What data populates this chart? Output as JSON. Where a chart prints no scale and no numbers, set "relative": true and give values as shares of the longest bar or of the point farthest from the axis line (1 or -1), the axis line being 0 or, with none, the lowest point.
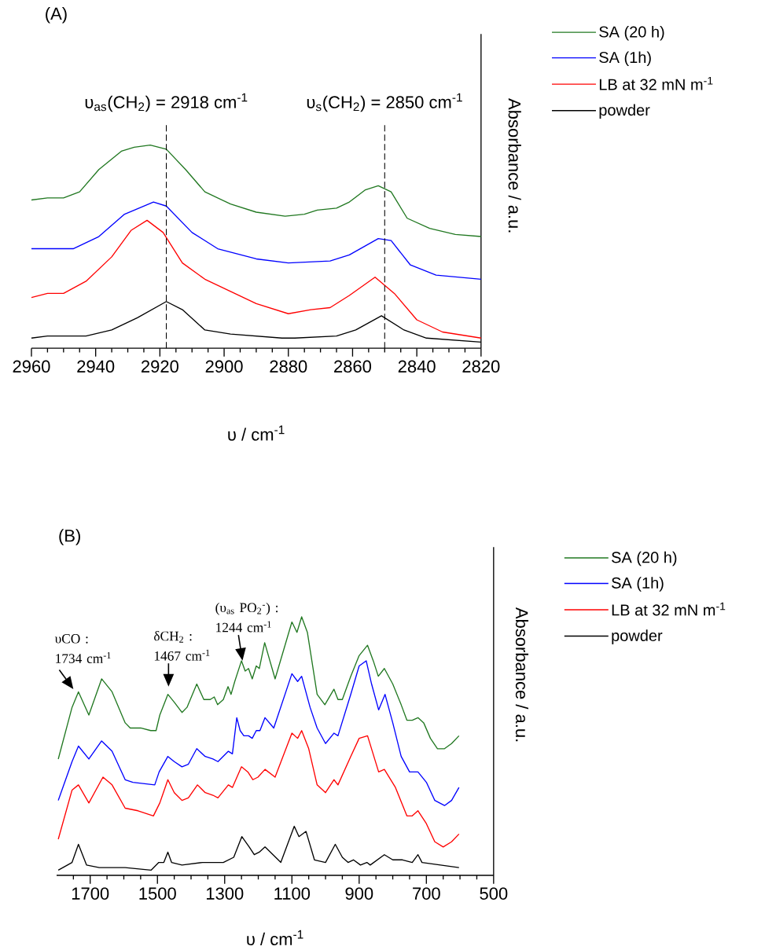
{
  "chart_data": [
    {
      "type": "line",
      "title": "(A)",
      "xlabel": "υ / cm$^{-1}$",
      "ylabel": "Absorbance / a.u.",
      "relative": true,
      "legend": "top right",
      "xlim": [
        2960,
        2820
      ],
      "xticks": [
        2960,
        {
          "value": 2955,
          "label": null
        },
        {
          "value": 2950,
          "label": null
        },
        {
          "value": 2945,
          "label": null
        },
        2940,
        {
          "value": 2935,
          "label": null
        },
        {
          "value": 2930,
          "label": null
        },
        {
          "value": 2925,
          "label": null
        },
        2920,
        {
          "value": 2915,
          "label": null
        },
        {
          "value": 2910,
          "label": null
        },
        {
          "value": 2905,
          "label": null
        },
        2900,
        {
          "value": 2895,
          "label": null
        },
        {
          "value": 2890,
          "label": null
        },
        {
          "value": 2885,
          "label": null
        },
        2880,
        {
          "value": 2875,
          "label": null
        },
        {
          "value": 2870,
          "label": null
        },
        {
          "value": 2865,
          "label": null
        },
        2860,
        {
          "value": 2855,
          "label": null
        },
        {
          "value": 2850,
          "label": null
        },
        {
          "value": 2845,
          "label": null
        },
        2840,
        {
          "value": 2835,
          "label": null
        },
        {
          "value": 2830,
          "label": null
        },
        {
          "value": 2825,
          "label": null
        },
        2820
      ],
      "ref_lines": [
        {
          "axis": "x",
          "value": 2918,
          "label": "υ$_{as}$(CH$_{2}$) = 2918 cm$^{-1}$",
          "line_style": "dashed"
        },
        {
          "axis": "x",
          "value": 2850,
          "label": "υ$_{s}$(CH$_{2}$) = 2850 cm$^{-1}$",
          "line_style": "dashed"
        }
      ],
      "series": [
        {
          "name": "SA (20 h)",
          "color": "#217821",
          "x": [
            2960,
            2955,
            2950,
            2945,
            2939,
            2932,
            2928,
            2923,
            2918,
            2912,
            2906,
            2898,
            2890,
            2881,
            2875,
            2871,
            2865,
            2861,
            2856,
            2852,
            2848,
            2843,
            2836,
            2828,
            2820
          ],
          "values": [
            0.73,
            0.74,
            0.74,
            0.77,
            0.88,
            0.97,
            0.99,
            1.0,
            0.98,
            0.88,
            0.77,
            0.71,
            0.67,
            0.65,
            0.66,
            0.68,
            0.69,
            0.72,
            0.78,
            0.8,
            0.77,
            0.64,
            0.59,
            0.56,
            0.55
          ]
        },
        {
          "name": "SA (1h)",
          "color": "#0000ff",
          "x": [
            2960,
            2955,
            2947,
            2939,
            2931,
            2922,
            2918,
            2910,
            2902,
            2890,
            2880,
            2867,
            2861,
            2852,
            2848,
            2842,
            2834,
            2820
          ],
          "values": [
            0.49,
            0.49,
            0.49,
            0.55,
            0.66,
            0.72,
            0.7,
            0.57,
            0.49,
            0.44,
            0.42,
            0.43,
            0.46,
            0.54,
            0.53,
            0.41,
            0.36,
            0.34
          ]
        },
        {
          "name": "LB at 32 mN m$^{-1}$",
          "color": "#ff0000",
          "x": [
            2960,
            2955,
            2950,
            2943,
            2935,
            2929,
            2924,
            2919,
            2913,
            2906,
            2898,
            2890,
            2880,
            2873,
            2867,
            2861,
            2853,
            2847,
            2840,
            2832,
            2820
          ],
          "values": [
            0.25,
            0.27,
            0.27,
            0.33,
            0.45,
            0.58,
            0.63,
            0.57,
            0.42,
            0.34,
            0.28,
            0.22,
            0.17,
            0.19,
            0.2,
            0.26,
            0.35,
            0.27,
            0.14,
            0.08,
            0.05
          ]
        },
        {
          "name": "powder",
          "color": "#000000",
          "x": [
            2960,
            2955,
            2943,
            2935,
            2927,
            2918,
            2913,
            2906,
            2898,
            2882,
            2878,
            2865,
            2859,
            2851,
            2844,
            2837,
            2820
          ],
          "values": [
            0.05,
            0.06,
            0.06,
            0.09,
            0.15,
            0.23,
            0.19,
            0.09,
            0.07,
            0.05,
            0.05,
            0.06,
            0.09,
            0.16,
            0.09,
            0.05,
            0.03
          ]
        }
      ]
    },
    {
      "type": "line",
      "title": "(B)",
      "xlabel": "υ / cm$^{-1}$",
      "ylabel": "Absorbance / a.u.",
      "relative": true,
      "legend": "top right",
      "xlim": [
        1800,
        500
      ],
      "xticks": [
        {
          "value": 1750,
          "label": null
        },
        1700,
        {
          "value": 1650,
          "label": null
        },
        {
          "value": 1600,
          "label": null
        },
        {
          "value": 1550,
          "label": null
        },
        1500,
        {
          "value": 1450,
          "label": null
        },
        {
          "value": 1400,
          "label": null
        },
        {
          "value": 1350,
          "label": null
        },
        1300,
        {
          "value": 1250,
          "label": null
        },
        {
          "value": 1200,
          "label": null
        },
        {
          "value": 1150,
          "label": null
        },
        1100,
        {
          "value": 1050,
          "label": null
        },
        {
          "value": 1000,
          "label": null
        },
        {
          "value": 950,
          "label": null
        },
        900,
        {
          "value": 850,
          "label": null
        },
        {
          "value": 800,
          "label": null
        },
        {
          "value": 750,
          "label": null
        },
        700,
        {
          "value": 650,
          "label": null
        },
        {
          "value": 600,
          "label": null
        },
        {
          "value": 550,
          "label": null
        },
        500
      ],
      "annotations": [
        {
          "text": "υCO : 1734 cm$^{-1}$",
          "x": 1734,
          "y": 0.71
        },
        {
          "text": "δCH$_{2}$ : 1467 cm$^{-1}$",
          "x": 1467,
          "y": 0.7
        },
        {
          "text": "(υ$_{as}$ PO$_{2}$$^{-}$) : 1244 cm$^{-1}$",
          "x": 1244,
          "y": 0.8
        }
      ],
      "series": [
        {
          "name": "SA (20 h)",
          "color": "#217821",
          "x": [
            1795,
            1754,
            1735,
            1704,
            1666,
            1635,
            1596,
            1581,
            1550,
            1520,
            1504,
            1493,
            1469,
            1450,
            1427,
            1412,
            1383,
            1362,
            1343,
            1331,
            1321,
            1304,
            1290,
            1281,
            1270,
            1250,
            1239,
            1229,
            1218,
            1206,
            1197,
            1181,
            1150,
            1100,
            1085,
            1071,
            1054,
            1025,
            1002,
            975,
            963,
            950,
            925,
            900,
            875,
            858,
            843,
            825,
            800,
            775,
            758,
            742,
            725,
            708,
            688,
            667,
            646,
            625,
            603
          ],
          "values": [
            0.45,
            0.65,
            0.71,
            0.62,
            0.76,
            0.71,
            0.59,
            0.57,
            0.57,
            0.56,
            0.56,
            0.62,
            0.7,
            0.67,
            0.63,
            0.65,
            0.74,
            0.68,
            0.68,
            0.69,
            0.66,
            0.68,
            0.73,
            0.7,
            0.75,
            0.83,
            0.79,
            0.8,
            0.76,
            0.81,
            0.8,
            0.9,
            0.76,
            0.98,
            0.94,
            1.0,
            0.94,
            0.7,
            0.66,
            0.72,
            0.68,
            0.68,
            0.77,
            0.85,
            0.89,
            0.83,
            0.77,
            0.8,
            0.74,
            0.66,
            0.6,
            0.6,
            0.61,
            0.59,
            0.53,
            0.49,
            0.49,
            0.51,
            0.54
          ]
        },
        {
          "name": "SA (1h)",
          "color": "#0000ff",
          "x": [
            1795,
            1754,
            1735,
            1704,
            1666,
            1635,
            1596,
            1573,
            1508,
            1495,
            1469,
            1450,
            1427,
            1408,
            1383,
            1358,
            1335,
            1320,
            1289,
            1277,
            1264,
            1254,
            1243,
            1229,
            1218,
            1206,
            1195,
            1180,
            1154,
            1100,
            1083,
            1071,
            1046,
            1025,
            1000,
            975,
            963,
            925,
            900,
            879,
            863,
            842,
            823,
            800,
            775,
            750,
            725,
            700,
            675,
            646,
            625,
            603
          ],
          "values": [
            0.29,
            0.44,
            0.5,
            0.45,
            0.52,
            0.48,
            0.37,
            0.36,
            0.35,
            0.4,
            0.46,
            0.44,
            0.42,
            0.43,
            0.49,
            0.46,
            0.45,
            0.44,
            0.48,
            0.47,
            0.61,
            0.56,
            0.54,
            0.54,
            0.53,
            0.56,
            0.56,
            0.61,
            0.57,
            0.78,
            0.75,
            0.77,
            0.65,
            0.57,
            0.51,
            0.55,
            0.54,
            0.7,
            0.81,
            0.83,
            0.74,
            0.64,
            0.7,
            0.59,
            0.46,
            0.4,
            0.4,
            0.36,
            0.29,
            0.27,
            0.29,
            0.34
          ]
        },
        {
          "name": "LB at 32 mN m$^{-1}$",
          "color": "#ff0000",
          "x": [
            1795,
            1754,
            1735,
            1704,
            1662,
            1635,
            1596,
            1558,
            1512,
            1493,
            1469,
            1450,
            1427,
            1408,
            1381,
            1358,
            1335,
            1320,
            1289,
            1277,
            1250,
            1231,
            1216,
            1201,
            1180,
            1150,
            1100,
            1083,
            1071,
            1050,
            1025,
            1000,
            975,
            963,
            925,
            900,
            875,
            842,
            825,
            792,
            758,
            742,
            725,
            700,
            675,
            650,
            625,
            603
          ],
          "values": [
            0.14,
            0.33,
            0.35,
            0.28,
            0.38,
            0.35,
            0.26,
            0.25,
            0.23,
            0.28,
            0.37,
            0.32,
            0.29,
            0.3,
            0.35,
            0.32,
            0.31,
            0.3,
            0.35,
            0.34,
            0.42,
            0.4,
            0.37,
            0.38,
            0.41,
            0.38,
            0.55,
            0.53,
            0.56,
            0.49,
            0.35,
            0.32,
            0.37,
            0.35,
            0.46,
            0.53,
            0.54,
            0.4,
            0.41,
            0.34,
            0.23,
            0.23,
            0.25,
            0.2,
            0.13,
            0.11,
            0.13,
            0.16
          ]
        },
        {
          "name": "powder",
          "color": "#000000",
          "x": [
            1795,
            1754,
            1735,
            1711,
            1673,
            1596,
            1519,
            1496,
            1481,
            1469,
            1458,
            1427,
            1366,
            1304,
            1273,
            1249,
            1227,
            1212,
            1197,
            1180,
            1133,
            1093,
            1079,
            1058,
            1033,
            1000,
            971,
            950,
            933,
            917,
            896,
            877,
            867,
            825,
            800,
            771,
            742,
            725,
            713,
            658,
            603
          ],
          "values": [
            0.02,
            0.05,
            0.12,
            0.04,
            0.03,
            0.03,
            0.02,
            0.05,
            0.05,
            0.09,
            0.05,
            0.04,
            0.05,
            0.05,
            0.07,
            0.15,
            0.11,
            0.08,
            0.09,
            0.11,
            0.05,
            0.19,
            0.15,
            0.17,
            0.06,
            0.05,
            0.12,
            0.07,
            0.05,
            0.06,
            0.04,
            0.05,
            0.04,
            0.08,
            0.06,
            0.06,
            0.05,
            0.08,
            0.05,
            0.04,
            0.03
          ]
        }
      ]
    }
  ]
}
